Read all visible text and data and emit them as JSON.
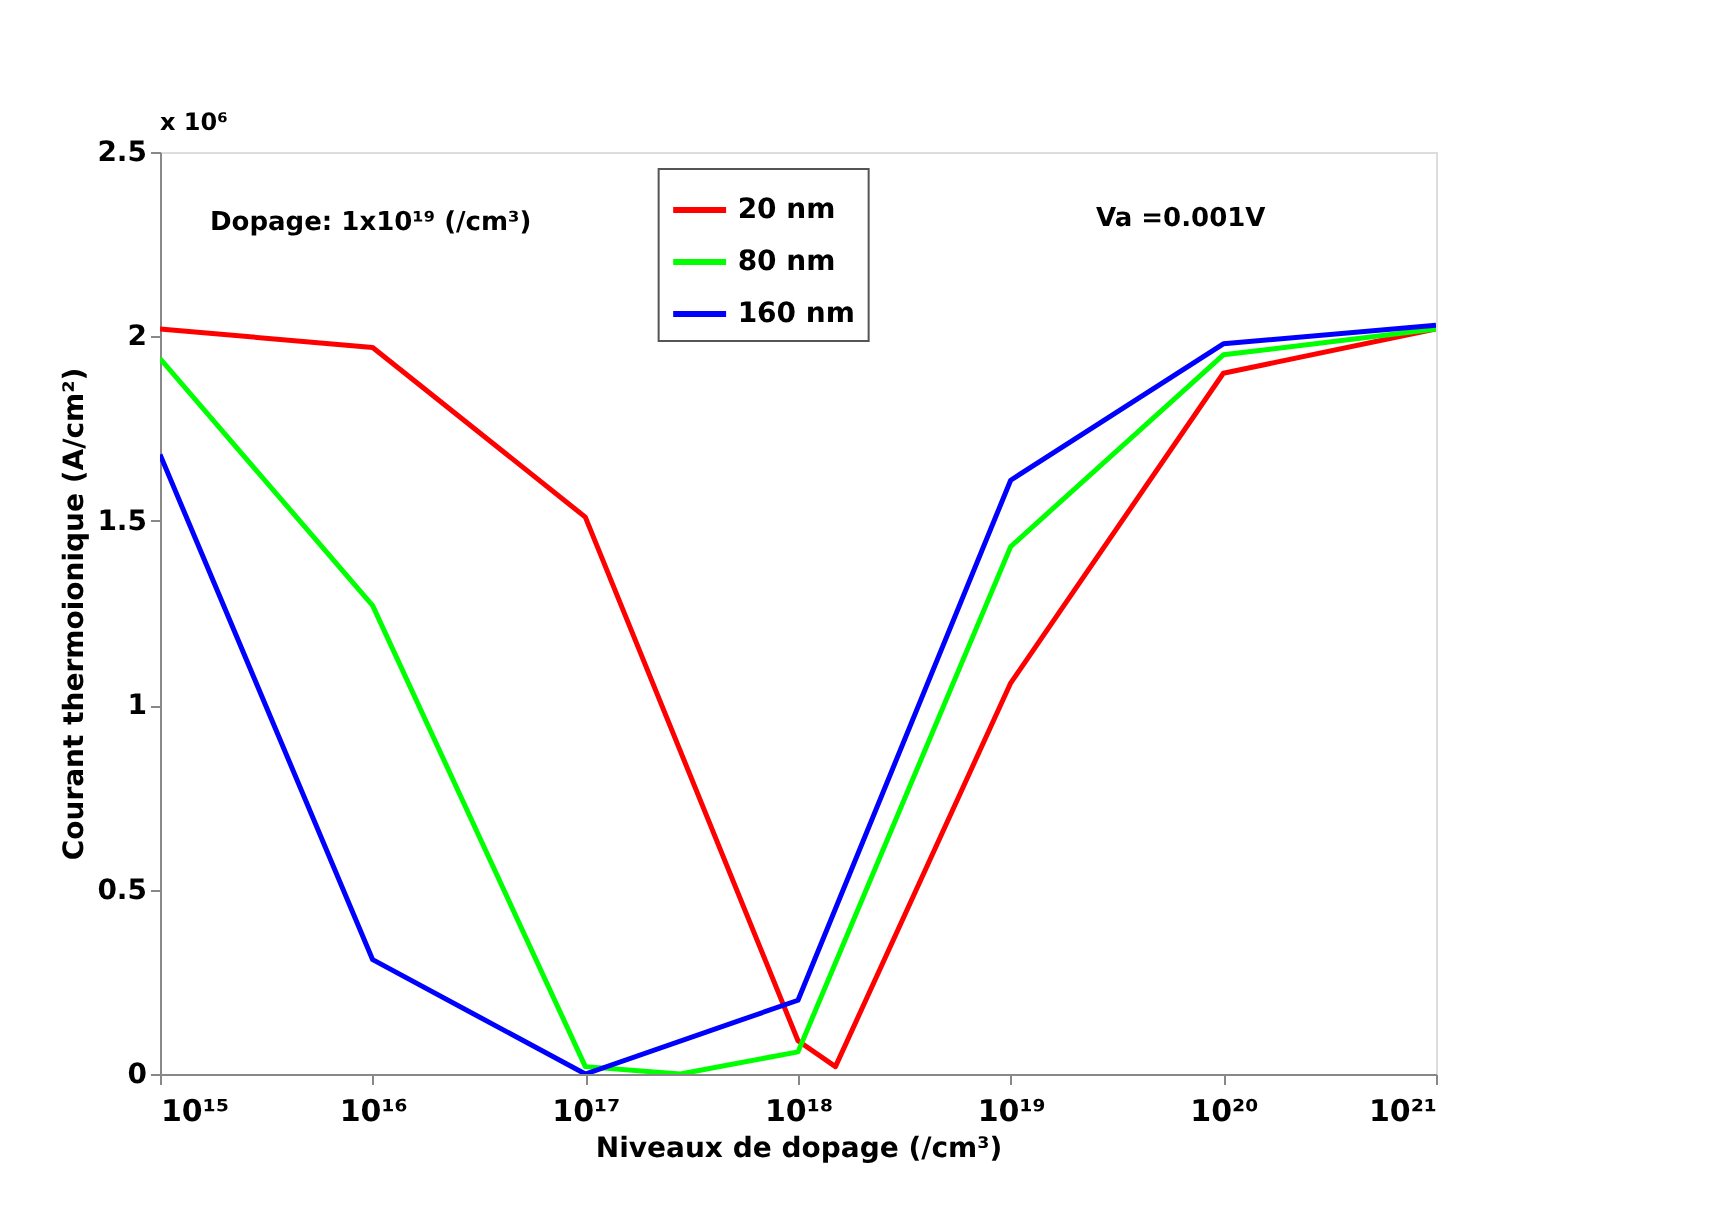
{
  "chart_data": {
    "type": "line",
    "xlabel": "Niveaux de dopage (/cm³)",
    "ylabel": "Courant thermoionique (A/cm²)",
    "annotations": [
      "x 10⁶",
      "Dopage: 1x10¹⁹ (/cm³)",
      "Va =0.001V"
    ],
    "log": "x",
    "xlim": [
      1000000000000000.0,
      1e+21
    ],
    "ylim": [
      0,
      2.5
    ],
    "xticks": [
      {
        "value": 1000000000000000.0,
        "label": "10¹⁵"
      },
      {
        "value": 1e+16,
        "label": "10¹⁶"
      },
      {
        "value": 1e+17,
        "label": "10¹⁷"
      },
      {
        "value": 1e+18,
        "label": "10¹⁸"
      },
      {
        "value": 1e+19,
        "label": "10¹⁹"
      },
      {
        "value": 1e+20,
        "label": "10²⁰"
      },
      {
        "value": 1e+21,
        "label": "10²¹"
      }
    ],
    "yticks": [
      0,
      0.5,
      1,
      1.5,
      2,
      2.5
    ],
    "grid": false,
    "legend": "top",
    "marker": "none",
    "line_style": "solid",
    "series": [
      {
        "name": "20 nm",
        "color": "#ff0000",
        "x": [
          1000000000000000.0,
          1e+16,
          1e+17,
          1e+18,
          1.5e+18,
          1e+19,
          1e+20,
          1e+21
        ],
        "values": [
          2.02,
          1.97,
          1.51,
          0.09,
          0.02,
          1.06,
          1.9,
          2.02
        ]
      },
      {
        "name": "80 nm",
        "color": "#00ff00",
        "x": [
          1000000000000000.0,
          1e+16,
          1e+17,
          2.8e+17,
          1e+18,
          1e+19,
          1e+20,
          1e+21
        ],
        "values": [
          1.94,
          1.27,
          0.02,
          0,
          0.06,
          1.43,
          1.95,
          2.02
        ]
      },
      {
        "name": "160 nm",
        "color": "#0000ff",
        "x": [
          1000000000000000.0,
          1e+16,
          1e+17,
          1e+18,
          1e+19,
          1e+20,
          1e+21
        ],
        "values": [
          1.68,
          0.31,
          0,
          0.2,
          1.61,
          1.98,
          2.03
        ]
      }
    ]
  }
}
